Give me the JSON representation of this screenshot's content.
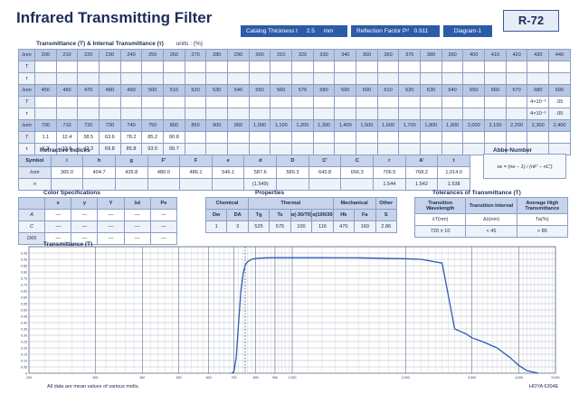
{
  "title": "Infrared Transmitting Filter",
  "header": {
    "catalog_label": "Catalog Thickness t",
    "catalog_value": "2.5",
    "catalog_unit": "mm",
    "reflection_label": "Reflection Factor Pᵈ",
    "reflection_value": "0.911",
    "diagram_label": "Diagram-1",
    "code": "R-72"
  },
  "transmittance_section": {
    "title": "Transmittance (T) & Internal Transmittance (τ)",
    "units": "units : (%)",
    "row_labels": [
      "λnm",
      "T",
      "τ"
    ],
    "blocks": [
      {
        "wavelengths": [
          "200",
          "210",
          "220",
          "230",
          "240",
          "250",
          "260",
          "270",
          "280",
          "290",
          "300",
          "310",
          "320",
          "330",
          "340",
          "350",
          "360",
          "370",
          "380",
          "390",
          "400",
          "410",
          "420",
          "430",
          "440"
        ],
        "T": [
          "",
          "",
          "",
          "",
          "",
          "",
          "",
          "",
          "",
          "",
          "",
          "",
          "",
          "",
          "",
          "",
          "",
          "",
          "",
          "",
          "",
          "",
          "",
          "",
          ""
        ],
        "tau": [
          "",
          "",
          "",
          "",
          "",
          "",
          "",
          "",
          "",
          "",
          "",
          "",
          "",
          "",
          "",
          "",
          "",
          "",
          "",
          "",
          "",
          "",
          "",
          "",
          ""
        ]
      },
      {
        "wavelengths": [
          "450",
          "460",
          "470",
          "480",
          "490",
          "500",
          "510",
          "520",
          "530",
          "540",
          "550",
          "560",
          "570",
          "580",
          "590",
          "600",
          "610",
          "620",
          "630",
          "640",
          "650",
          "660",
          "670",
          "680",
          "690"
        ],
        "T": [
          "",
          "",
          "",
          "",
          "",
          "",
          "",
          "",
          "",
          "",
          "",
          "",
          "",
          "",
          "",
          "",
          "",
          "",
          "",
          "",
          "",
          "",
          "",
          "4×10⁻³",
          ".05"
        ],
        "tau": [
          "",
          "",
          "",
          "",
          "",
          "",
          "",
          "",
          "",
          "",
          "",
          "",
          "",
          "",
          "",
          "",
          "",
          "",
          "",
          "",
          "",
          "",
          "",
          "4×10⁻³",
          ".05"
        ]
      },
      {
        "wavelengths": [
          "700",
          "710",
          "720",
          "730",
          "740",
          "750",
          "800",
          "850",
          "900",
          "950",
          "1,000",
          "1,100",
          "1,200",
          "1,300",
          "1,400",
          "1,500",
          "1,600",
          "1,700",
          "1,800",
          "1,900",
          "2,000",
          "2,100",
          "2,200",
          "2,300",
          "2,400"
        ],
        "T": [
          "1.1",
          "12.4",
          "38.5",
          "63.6",
          "78.2",
          "85.2",
          "90.8",
          "",
          "",
          "",
          "",
          "",
          "",
          "",
          "",
          "",
          "",
          "",
          "",
          "",
          "",
          "",
          "",
          "",
          ""
        ],
        "tau": [
          "1.2",
          "13.6",
          "42.3",
          "69.8",
          "85.8",
          "93.5",
          "99.7",
          "",
          "",
          "",
          "",
          "",
          "",
          "",
          "",
          "",
          "",
          "",
          "",
          "",
          "",
          "",
          "",
          "",
          ""
        ]
      }
    ]
  },
  "refractive_indices": {
    "title": "Refractive Indices",
    "header": [
      "Symbol",
      "i",
      "h",
      "g",
      "F'",
      "F",
      "e",
      "d",
      "D",
      "C'",
      "C",
      "r",
      "A'",
      "t"
    ],
    "lambda_label": "λnm",
    "n_label": "n",
    "wavelengths": [
      "365.0",
      "404.7",
      "435.8",
      "480.0",
      "486.1",
      "546.1",
      "587.6",
      "589.3",
      "643.8",
      "656.3",
      "706.5",
      "768.2",
      "1,014.0"
    ],
    "n_values": [
      "",
      "",
      "",
      "",
      "",
      "",
      "(1.549)",
      "",
      "",
      "",
      "1.544",
      "1.542",
      "1.538"
    ]
  },
  "abbe_number": {
    "title": "Abbe-Number",
    "formula": "νe = (ne − 1) / (nF' − nC')"
  },
  "color_spec": {
    "title": "Color Specifications",
    "header": [
      "",
      "x",
      "y",
      "Y",
      "λd",
      "Pe"
    ],
    "rows": [
      [
        "A",
        "—",
        "—",
        "—",
        "—",
        "—"
      ],
      [
        "C",
        "—",
        "—",
        "—",
        "—",
        "—"
      ],
      [
        "D65",
        "—",
        "—",
        "—",
        "—",
        "—"
      ]
    ]
  },
  "properties": {
    "title": "Properties",
    "group_header": [
      "Chemical",
      "Thermal",
      "Mechanical",
      "Other"
    ],
    "sub_header": [
      "Dw",
      "DA",
      "Tg",
      "Ts",
      "α(-30/70)",
      "α(100/300)",
      "Hk",
      "Fa",
      "S"
    ],
    "values": [
      "1",
      "3",
      "525",
      "575",
      "100",
      "116",
      "470",
      "160",
      "2.86"
    ]
  },
  "tolerances": {
    "title": "Tolerances of Transmittance (T)",
    "header": [
      "Transition Wavelength",
      "Transition Interval",
      "Average High Transmittance"
    ],
    "sub_header": [
      "λT(nm)",
      "Δλ(nm)",
      "Ta(%)"
    ],
    "values": [
      "720 ± 10",
      "< 45",
      "> 85"
    ]
  },
  "chart_title": "Transmittance (T)",
  "chart_data": {
    "type": "line",
    "title": "Transmittance (T)",
    "xlabel": "",
    "ylabel": "",
    "x_scale": "log",
    "xlim": [
      200,
      5000
    ],
    "ylim": [
      0,
      1.0
    ],
    "x_ticks": [
      "200",
      "300",
      "400",
      "500",
      "600",
      "700",
      "800",
      "900",
      "1,000",
      "2,000",
      "3,000",
      "4,000",
      "5,000"
    ],
    "x_tick_values": [
      200,
      300,
      400,
      500,
      600,
      700,
      800,
      900,
      1000,
      2000,
      3000,
      4000,
      5000
    ],
    "y_ticks": [
      "0",
      "0.05",
      "0.10",
      "0.15",
      "0.20",
      "0.25",
      "0.30",
      "0.35",
      "0.40",
      "0.45",
      "0.50",
      "0.55",
      "0.60",
      "0.65",
      "0.70",
      "0.75",
      "0.80",
      "0.85",
      "0.90",
      "0.95"
    ],
    "y_tick_values": [
      0,
      0.05,
      0.1,
      0.15,
      0.2,
      0.25,
      0.3,
      0.35,
      0.4,
      0.45,
      0.5,
      0.55,
      0.6,
      0.65,
      0.7,
      0.75,
      0.8,
      0.85,
      0.9,
      0.95
    ],
    "grid": true,
    "series": [
      {
        "x": [
          690,
          700,
          710,
          720,
          730,
          740,
          750,
          760,
          780,
          800,
          850,
          900,
          1000,
          1200,
          1500,
          2000,
          2200,
          2500,
          2700,
          2900,
          3000,
          3200,
          3500,
          3800,
          4000,
          4200,
          4500
        ],
        "y": [
          0.0,
          0.011,
          0.124,
          0.385,
          0.636,
          0.782,
          0.852,
          0.88,
          0.9,
          0.908,
          0.912,
          0.913,
          0.913,
          0.913,
          0.912,
          0.905,
          0.9,
          0.87,
          0.35,
          0.31,
          0.28,
          0.25,
          0.2,
          0.12,
          0.06,
          0.02,
          0.0
        ]
      }
    ]
  },
  "footer": {
    "note": "All data are mean values of various melts.",
    "code": "HOYA 6304E"
  }
}
